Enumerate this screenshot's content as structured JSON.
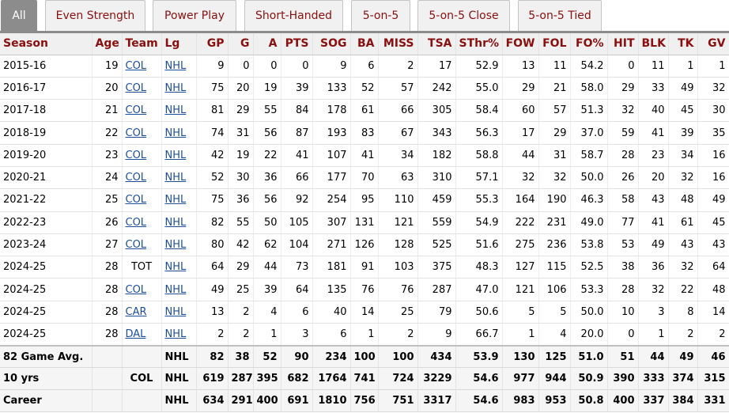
{
  "tabs": [
    {
      "label": "All",
      "active": true
    },
    {
      "label": "Even Strength",
      "active": false
    },
    {
      "label": "Power Play",
      "active": false
    },
    {
      "label": "Short-Handed",
      "active": false
    },
    {
      "label": "5-on-5",
      "active": false
    },
    {
      "label": "5-on-5 Close",
      "active": false
    },
    {
      "label": "5-on-5 Tied",
      "active": false
    }
  ],
  "columns": [
    "Season",
    "Age",
    "Team",
    "Lg",
    "GP",
    "G",
    "A",
    "PTS",
    "SOG",
    "BA",
    "MISS",
    "TSA",
    "SThr%",
    "FOW",
    "FOL",
    "FO%",
    "HIT",
    "BLK",
    "TK",
    "GV"
  ],
  "rows": [
    [
      "2015-16",
      "19",
      "COL",
      "NHL",
      "9",
      "0",
      "0",
      "0",
      "9",
      "6",
      "2",
      "17",
      "52.9",
      "13",
      "11",
      "54.2",
      "0",
      "11",
      "1",
      "1"
    ],
    [
      "2016-17",
      "20",
      "COL",
      "NHL",
      "75",
      "20",
      "19",
      "39",
      "133",
      "52",
      "57",
      "242",
      "55.0",
      "29",
      "21",
      "58.0",
      "29",
      "33",
      "49",
      "32"
    ],
    [
      "2017-18",
      "21",
      "COL",
      "NHL",
      "81",
      "29",
      "55",
      "84",
      "178",
      "61",
      "66",
      "305",
      "58.4",
      "60",
      "57",
      "51.3",
      "32",
      "40",
      "45",
      "30"
    ],
    [
      "2018-19",
      "22",
      "COL",
      "NHL",
      "74",
      "31",
      "56",
      "87",
      "193",
      "83",
      "67",
      "343",
      "56.3",
      "17",
      "29",
      "37.0",
      "59",
      "41",
      "39",
      "35"
    ],
    [
      "2019-20",
      "23",
      "COL",
      "NHL",
      "42",
      "19",
      "22",
      "41",
      "107",
      "41",
      "34",
      "182",
      "58.8",
      "44",
      "31",
      "58.7",
      "28",
      "23",
      "34",
      "16"
    ],
    [
      "2020-21",
      "24",
      "COL",
      "NHL",
      "52",
      "30",
      "36",
      "66",
      "177",
      "70",
      "63",
      "310",
      "57.1",
      "32",
      "32",
      "50.0",
      "26",
      "20",
      "32",
      "16"
    ],
    [
      "2021-22",
      "25",
      "COL",
      "NHL",
      "75",
      "36",
      "56",
      "92",
      "254",
      "95",
      "110",
      "459",
      "55.3",
      "164",
      "190",
      "46.3",
      "58",
      "43",
      "48",
      "49"
    ],
    [
      "2022-23",
      "26",
      "COL",
      "NHL",
      "82",
      "55",
      "50",
      "105",
      "307",
      "131",
      "121",
      "559",
      "54.9",
      "222",
      "231",
      "49.0",
      "77",
      "41",
      "61",
      "45"
    ],
    [
      "2023-24",
      "27",
      "COL",
      "NHL",
      "80",
      "42",
      "62",
      "104",
      "271",
      "126",
      "128",
      "525",
      "51.6",
      "275",
      "236",
      "53.8",
      "53",
      "49",
      "43",
      "43"
    ],
    [
      "2024-25",
      "28",
      "TOT",
      "NHL",
      "64",
      "29",
      "44",
      "73",
      "181",
      "91",
      "103",
      "375",
      "48.3",
      "127",
      "115",
      "52.5",
      "38",
      "36",
      "32",
      "64"
    ],
    [
      "2024-25",
      "28",
      "COL",
      "NHL",
      "49",
      "25",
      "39",
      "64",
      "135",
      "76",
      "76",
      "287",
      "47.0",
      "121",
      "106",
      "53.3",
      "28",
      "32",
      "22",
      "48"
    ],
    [
      "2024-25",
      "28",
      "CAR",
      "NHL",
      "13",
      "2",
      "4",
      "6",
      "40",
      "14",
      "25",
      "79",
      "50.6",
      "5",
      "5",
      "50.0",
      "10",
      "3",
      "8",
      "14"
    ],
    [
      "2024-25",
      "28",
      "DAL",
      "NHL",
      "2",
      "2",
      "1",
      "3",
      "6",
      "1",
      "2",
      "9",
      "66.7",
      "1",
      "4",
      "20.0",
      "0",
      "1",
      "2",
      "2"
    ]
  ],
  "footer": [
    [
      "82 Game Avg.",
      "",
      "",
      "NHL",
      "82",
      "38",
      "52",
      "90",
      "234",
      "100",
      "100",
      "434",
      "53.9",
      "130",
      "125",
      "51.0",
      "51",
      "44",
      "49",
      "46"
    ],
    [
      "10 yrs",
      "",
      "COL",
      "NHL",
      "619",
      "287",
      "395",
      "682",
      "1764",
      "741",
      "724",
      "3229",
      "54.6",
      "977",
      "944",
      "50.9",
      "390",
      "333",
      "374",
      "315"
    ],
    [
      "Career",
      "",
      "",
      "NHL",
      "634",
      "291",
      "400",
      "691",
      "1810",
      "756",
      "751",
      "3317",
      "54.6",
      "983",
      "953",
      "50.8",
      "400",
      "337",
      "384",
      "331"
    ]
  ]
}
